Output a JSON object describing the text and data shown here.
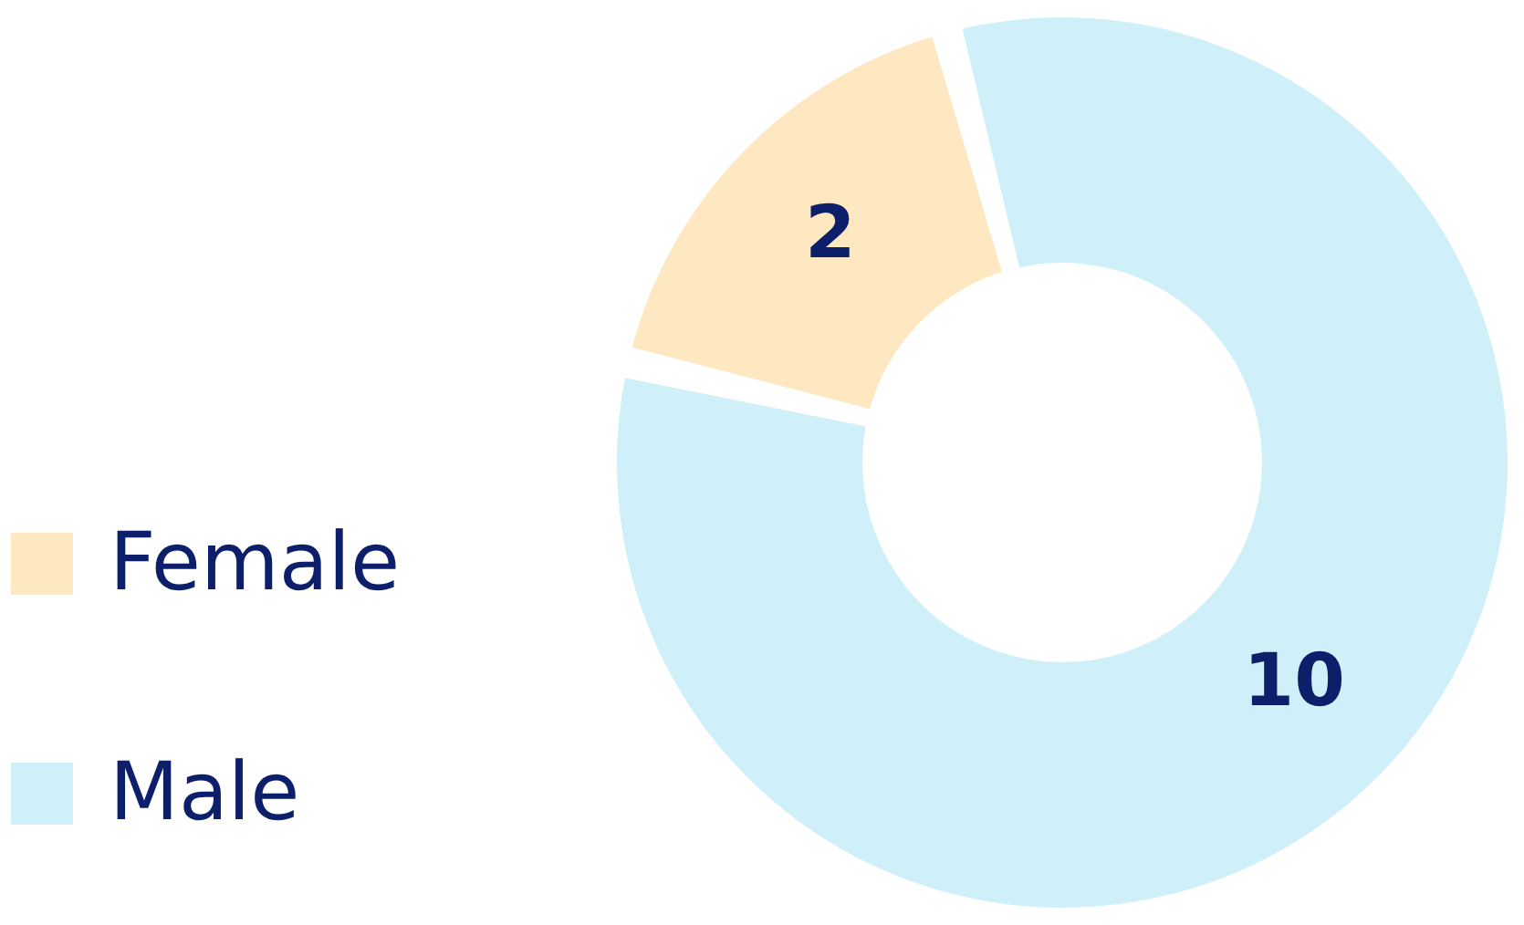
{
  "chart_data": {
    "type": "donut",
    "categories": [
      "Female",
      "Male"
    ],
    "values": [
      2,
      10
    ],
    "colors": [
      "#fde8c2",
      "#cff0f9"
    ],
    "data_labels": true,
    "legend": "left"
  }
}
